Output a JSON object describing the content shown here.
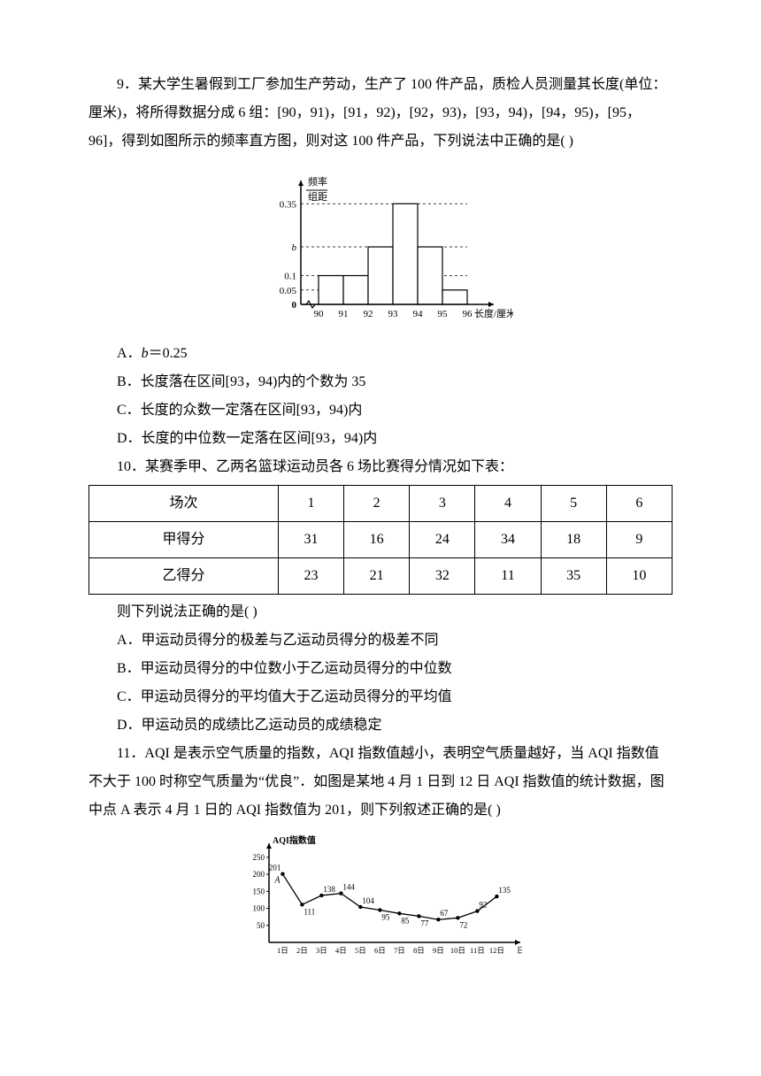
{
  "q9": {
    "text1": "9．某大学生暑假到工厂参加生产劳动，生产了 100 件产品，质检人员测量其长度(单位：厘米)，将所得数据分成 6 组：[90，91)，[91，92)，[92，93)，[93，94)，[94，95)，[95，96]，得到如图所示的频率直方图，则对这 100 件产品，下列说法中正确的是(        )",
    "chart": {
      "yaxis_label_top": "频率",
      "yaxis_label_bot": "组距",
      "xaxis_label": "长度/厘米",
      "xticks": [
        "90",
        "91",
        "92",
        "93",
        "94",
        "95",
        "96"
      ],
      "yticks": [
        {
          "v": 0.35,
          "label": "0.35"
        },
        {
          "v": 0.2,
          "label": "b"
        },
        {
          "v": 0.1,
          "label": "0.1"
        },
        {
          "v": 0.05,
          "label": "0.05"
        }
      ],
      "bars": [
        0.1,
        0.1,
        0.2,
        0.35,
        0.2,
        0.05
      ],
      "bar_color": "#ffffff",
      "stroke": "#000000",
      "dash_yticks": [
        0.35,
        0.2,
        0.1,
        0.05
      ]
    },
    "optA": "A．b＝0.25",
    "optB": "B．长度落在区间[93，94)内的个数为 35",
    "optC": "C．长度的众数一定落在区间[93，94)内",
    "optD": "D．长度的中位数一定落在区间[93，94)内"
  },
  "q10": {
    "text": "10．某赛季甲、乙两名篮球运动员各 6 场比赛得分情况如下表：",
    "table": {
      "header": [
        "场次",
        "1",
        "2",
        "3",
        "4",
        "5",
        "6"
      ],
      "row1_label": "甲得分",
      "row1": [
        "31",
        "16",
        "24",
        "34",
        "18",
        "9"
      ],
      "row2_label": "乙得分",
      "row2": [
        "23",
        "21",
        "32",
        "11",
        "35",
        "10"
      ]
    },
    "after": "则下列说法正确的是(        )",
    "optA": "A．甲运动员得分的极差与乙运动员得分的极差不同",
    "optB": "B．甲运动员得分的中位数小于乙运动员得分的中位数",
    "optC": "C．甲运动员得分的平均值大于乙运动员得分的平均值",
    "optD": "D．甲运动员的成绩比乙运动员的成绩稳定"
  },
  "q11": {
    "text": "11．AQI 是表示空气质量的指数，AQI 指数值越小，表明空气质量越好，当 AQI 指数值不大于 100 时称空气质量为“优良”．如图是某地 4 月 1 日到 12 日 AQI 指数值的统计数据，图中点 A 表示 4 月 1 日的 AQI 指数值为 201，则下列叙述正确的是(        )",
    "chart": {
      "title": "AQI指数值",
      "xaxis_label": "日期",
      "yticks": [
        "50",
        "100",
        "150",
        "200",
        "250"
      ],
      "xlabels": [
        "1日",
        "2日",
        "3日",
        "4日",
        "5日",
        "6日",
        "7日",
        "8日",
        "9日",
        "10日",
        "11日",
        "12日"
      ],
      "point_A_label": "A",
      "values": [
        201,
        111,
        138,
        144,
        104,
        95,
        85,
        77,
        67,
        72,
        92,
        135
      ],
      "labels": [
        "201",
        "111",
        "138",
        "144",
        "104",
        "95",
        "85",
        "77",
        "67",
        "72",
        "92",
        "135"
      ],
      "stroke": "#000000",
      "point_fill": "#000000"
    }
  }
}
